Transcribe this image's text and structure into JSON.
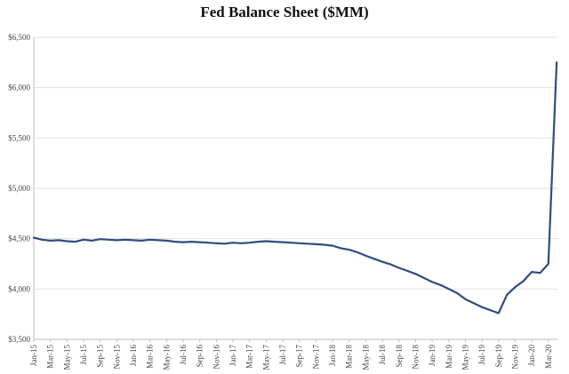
{
  "chart_data": {
    "type": "line",
    "title": "Fed Balance Sheet ($MM)",
    "xlabel": "",
    "ylabel": "",
    "ylim": [
      3500,
      6500
    ],
    "y_ticks": [
      3500,
      4000,
      4500,
      5000,
      5500,
      6000,
      6500
    ],
    "y_tick_labels": [
      "$3,500",
      "$4,000",
      "$4,500",
      "$5,000",
      "$5,500",
      "$6,000",
      "$6,500"
    ],
    "x_tick_labels": [
      "Jan-15",
      "Mar-15",
      "May-15",
      "Jul-15",
      "Sep-15",
      "Nov-15",
      "Jan-16",
      "Mar-16",
      "May-16",
      "Jul-16",
      "Sep-16",
      "Nov-16",
      "Jan-17",
      "Mar-17",
      "May-17",
      "Jul-17",
      "Sep-17",
      "Nov-17",
      "Jan-18",
      "Mar-18",
      "May-18",
      "Jul-18",
      "Sep-18",
      "Nov-18",
      "Jan-19",
      "Mar-19",
      "May-19",
      "Jul-19",
      "Sep-19",
      "Nov-19",
      "Jan-20",
      "Mar-20"
    ],
    "grid": true,
    "legend": "none",
    "series": [
      {
        "color": "#2e4d7f",
        "x": [
          "Jan-15",
          "Feb-15",
          "Mar-15",
          "Apr-15",
          "May-15",
          "Jun-15",
          "Jul-15",
          "Aug-15",
          "Sep-15",
          "Oct-15",
          "Nov-15",
          "Dec-15",
          "Jan-16",
          "Feb-16",
          "Mar-16",
          "Apr-16",
          "May-16",
          "Jun-16",
          "Jul-16",
          "Aug-16",
          "Sep-16",
          "Oct-16",
          "Nov-16",
          "Dec-16",
          "Jan-17",
          "Feb-17",
          "Mar-17",
          "Apr-17",
          "May-17",
          "Jun-17",
          "Jul-17",
          "Aug-17",
          "Sep-17",
          "Oct-17",
          "Nov-17",
          "Dec-17",
          "Jan-18",
          "Feb-18",
          "Mar-18",
          "Apr-18",
          "May-18",
          "Jun-18",
          "Jul-18",
          "Aug-18",
          "Sep-18",
          "Oct-18",
          "Nov-18",
          "Dec-18",
          "Jan-19",
          "Feb-19",
          "Mar-19",
          "Apr-19",
          "May-19",
          "Jun-19",
          "Jul-19",
          "Aug-19",
          "Sep-19",
          "Oct-19",
          "Nov-19",
          "Dec-19",
          "Jan-20",
          "Feb-20",
          "Mar-20",
          "Apr-20"
        ],
        "values": [
          4510,
          4490,
          4480,
          4485,
          4475,
          4470,
          4490,
          4480,
          4495,
          4490,
          4485,
          4490,
          4485,
          4480,
          4490,
          4485,
          4480,
          4470,
          4465,
          4470,
          4465,
          4460,
          4455,
          4450,
          4460,
          4455,
          4460,
          4470,
          4475,
          4470,
          4465,
          4460,
          4455,
          4450,
          4445,
          4440,
          4430,
          4405,
          4390,
          4365,
          4330,
          4300,
          4270,
          4245,
          4210,
          4180,
          4150,
          4110,
          4070,
          4040,
          4000,
          3960,
          3900,
          3860,
          3820,
          3790,
          3760,
          3940,
          4020,
          4080,
          4170,
          4160,
          4250,
          6250
        ]
      }
    ]
  }
}
